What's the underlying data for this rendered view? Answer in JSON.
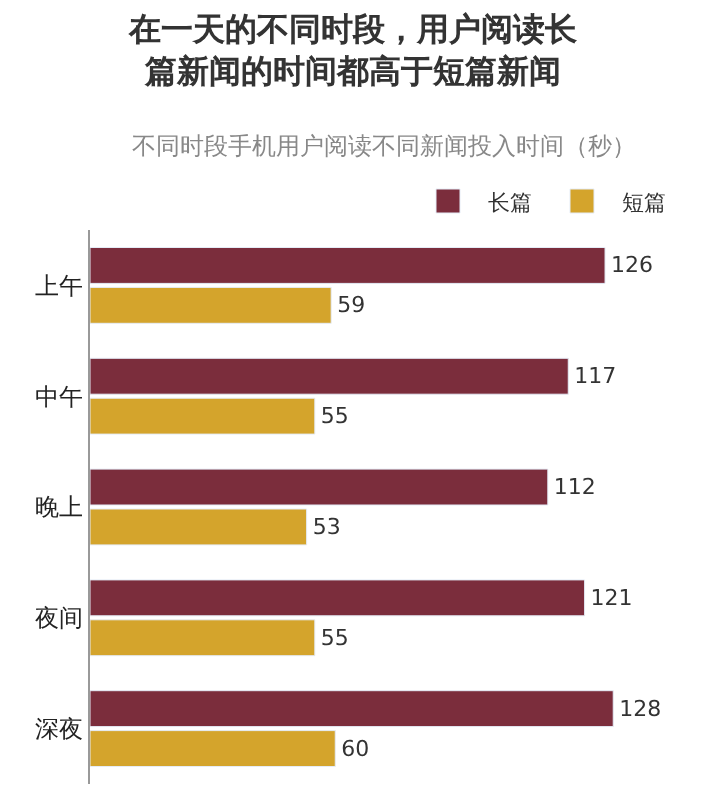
{
  "chart_data": {
    "type": "bar",
    "orientation": "horizontal",
    "title": "在一天的不同时段，用户阅读长篇新闻的时间都高于短篇新闻",
    "subtitle": "不同时段手机用户阅读不同新闻投入时间（秒）",
    "categories": [
      "上午",
      "中午",
      "晚上",
      "夜间",
      "深夜"
    ],
    "series": [
      {
        "name": "长篇",
        "color": "#7b2d3c",
        "values": [
          126,
          117,
          112,
          121,
          128
        ]
      },
      {
        "name": "短篇",
        "color": "#d4a42c",
        "values": [
          59,
          55,
          53,
          55,
          60
        ]
      }
    ],
    "data_labels": true,
    "legend": "top right"
  }
}
